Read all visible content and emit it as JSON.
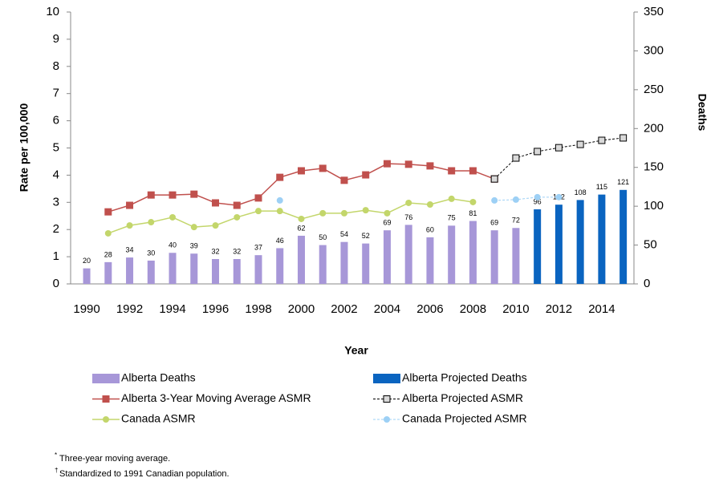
{
  "chart_data": {
    "type": "bar-line",
    "x_label": "Year",
    "y_label": "Rate per 100,000",
    "y2_label": "Deaths",
    "x": [
      1990,
      1991,
      1992,
      1993,
      1994,
      1995,
      1996,
      1997,
      1998,
      1999,
      2000,
      2001,
      2002,
      2003,
      2004,
      2005,
      2006,
      2007,
      2008,
      2009,
      2010,
      2011,
      2012,
      2013,
      2014,
      2015
    ],
    "xlim": [
      1989.25,
      2015.5
    ],
    "xticks": [
      1990,
      1992,
      1994,
      1996,
      1998,
      2000,
      2002,
      2004,
      2006,
      2008,
      2010,
      2012,
      2014
    ],
    "ylim": [
      0,
      10
    ],
    "yticks": [
      0,
      1,
      2,
      3,
      4,
      5,
      6,
      7,
      8,
      9,
      10
    ],
    "y2lim": [
      0,
      350
    ],
    "y2ticks": [
      0,
      50,
      100,
      150,
      200,
      250,
      300,
      350
    ],
    "series": [
      {
        "name": "Alberta Deaths",
        "type": "bar",
        "axis": "y2",
        "color": "#a797d8",
        "data_labels": true,
        "values": [
          20,
          28,
          34,
          30,
          40,
          39,
          32,
          32,
          37,
          46,
          62,
          50,
          54,
          52,
          69,
          76,
          60,
          75,
          81,
          69,
          72,
          null,
          null,
          null,
          null,
          null
        ]
      },
      {
        "name": "Alberta Projected Deaths",
        "type": "bar",
        "axis": "y2",
        "color": "#0a64c0",
        "data_labels": true,
        "values": [
          null,
          null,
          null,
          null,
          null,
          null,
          null,
          null,
          null,
          null,
          null,
          null,
          null,
          null,
          null,
          null,
          null,
          null,
          null,
          null,
          null,
          96,
          102,
          108,
          115,
          121
        ]
      },
      {
        "name": "Alberta 3-Year Moving Average ASMR",
        "type": "line",
        "axis": "y",
        "color": "#c0504d",
        "marker": "square",
        "marker_fill": "#c0504d",
        "dashed": false,
        "values": [
          null,
          2.65,
          2.89,
          3.27,
          3.27,
          3.3,
          2.98,
          2.89,
          3.16,
          3.92,
          4.16,
          4.25,
          3.81,
          4.01,
          4.42,
          4.4,
          4.34,
          4.16,
          4.16,
          3.86,
          null,
          null,
          null,
          null,
          null,
          null
        ]
      },
      {
        "name": "Alberta Projected ASMR",
        "type": "line",
        "axis": "y",
        "color": "#000000",
        "marker": "square",
        "marker_fill": "#d9d9d9",
        "dashed": true,
        "values": [
          null,
          null,
          null,
          null,
          null,
          null,
          null,
          null,
          null,
          null,
          null,
          null,
          null,
          null,
          null,
          null,
          null,
          null,
          null,
          3.86,
          4.63,
          4.87,
          5.01,
          5.13,
          5.28,
          5.37
        ]
      },
      {
        "name": "Canada ASMR",
        "type": "line",
        "axis": "y",
        "color": "#c3d66b",
        "marker": "circle",
        "marker_fill": "#c3d66b",
        "dashed": false,
        "values": [
          null,
          1.86,
          2.15,
          2.27,
          2.45,
          2.09,
          2.15,
          2.45,
          2.68,
          2.68,
          2.39,
          2.6,
          2.6,
          2.71,
          2.6,
          2.98,
          2.92,
          3.13,
          3.01,
          null,
          null,
          null,
          null,
          null,
          null,
          null
        ]
      },
      {
        "name": "Canada Projected ASMR",
        "type": "line",
        "axis": "y",
        "color": "#9dd0f5",
        "marker": "circle",
        "marker_fill": "#9dd0f5",
        "dashed": true,
        "values": [
          null,
          null,
          null,
          null,
          null,
          null,
          null,
          null,
          null,
          3.07,
          null,
          null,
          null,
          null,
          null,
          null,
          null,
          null,
          null,
          3.07,
          3.1,
          3.19,
          3.19,
          null,
          null,
          null
        ]
      }
    ],
    "footnotes": [
      {
        "mark": "*",
        "text": "Three-year moving average."
      },
      {
        "mark": "†",
        "text": "Standardized to 1991 Canadian population."
      }
    ]
  }
}
